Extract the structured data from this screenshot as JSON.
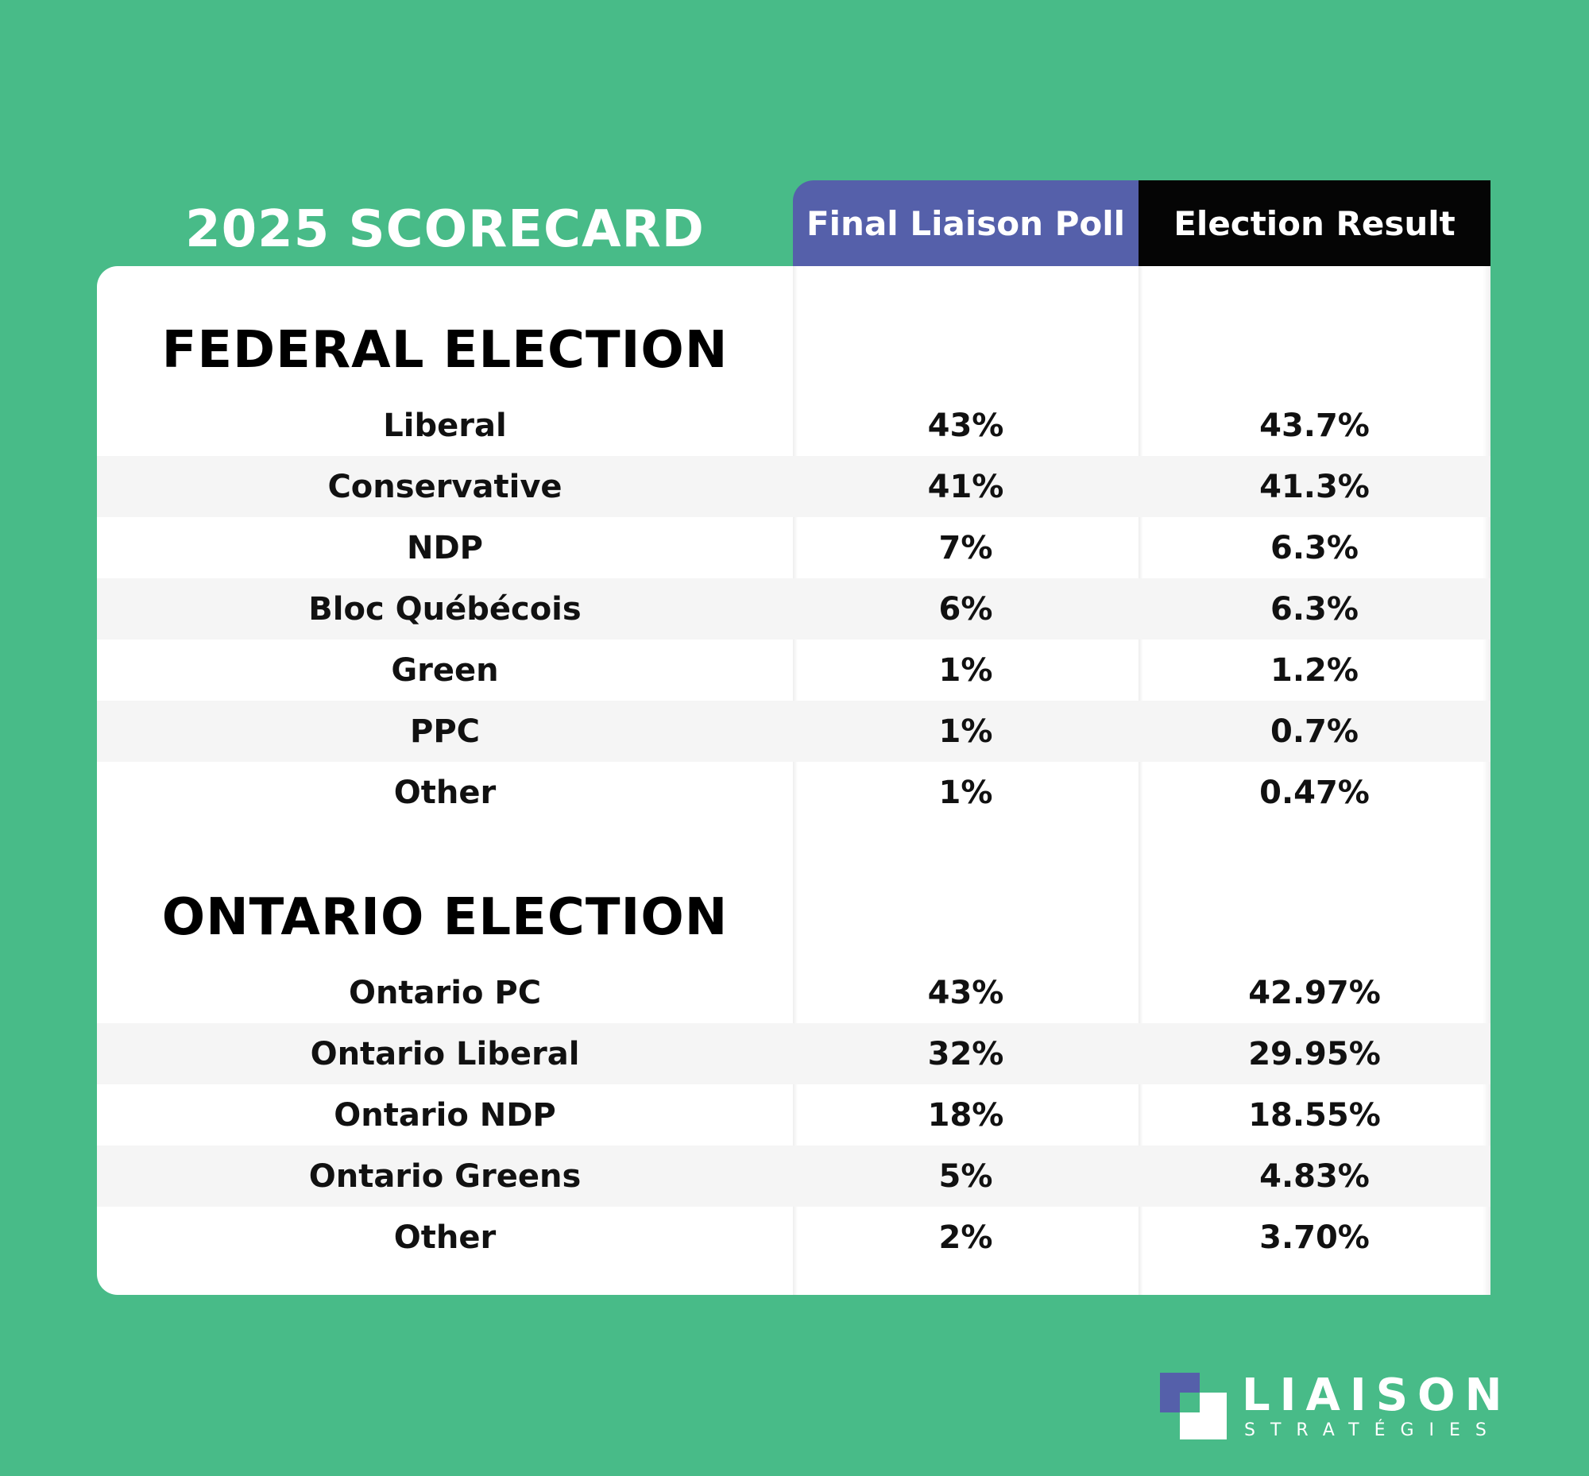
{
  "title": "2025 SCORECARD",
  "colors": {
    "background": "#48bb88",
    "poll_header": "#5560aa",
    "result_header": "#050505",
    "alt_row": "#f5f5f5"
  },
  "columns": {
    "poll": "Final Liaison Poll",
    "result": "Election Result"
  },
  "federal": {
    "heading": "FEDERAL ELECTION",
    "rows": [
      {
        "party": "Liberal",
        "poll": "43%",
        "result": "43.7%"
      },
      {
        "party": "Conservative",
        "poll": "41%",
        "result": "41.3%"
      },
      {
        "party": "NDP",
        "poll": "7%",
        "result": "6.3%"
      },
      {
        "party": "Bloc Québécois",
        "poll": "6%",
        "result": "6.3%"
      },
      {
        "party": "Green",
        "poll": "1%",
        "result": "1.2%"
      },
      {
        "party": "PPC",
        "poll": "1%",
        "result": "0.7%"
      },
      {
        "party": "Other",
        "poll": "1%",
        "result": "0.47%"
      }
    ]
  },
  "ontario": {
    "heading": "ONTARIO ELECTION",
    "rows": [
      {
        "party": "Ontario PC",
        "poll": "43%",
        "result": "42.97%"
      },
      {
        "party": "Ontario Liberal",
        "poll": "32%",
        "result": "29.95%"
      },
      {
        "party": "Ontario NDP",
        "poll": "18%",
        "result": "18.55%"
      },
      {
        "party": "Ontario Greens",
        "poll": "5%",
        "result": "4.83%"
      },
      {
        "party": "Other",
        "poll": "2%",
        "result": "3.70%"
      }
    ]
  },
  "logo": {
    "name": "LIAISON",
    "tagline": "STRATÉGIES"
  },
  "chart_data": {
    "type": "table",
    "title": "2025 SCORECARD",
    "columns": [
      "Final Liaison Poll",
      "Election Result"
    ],
    "sections": [
      {
        "name": "FEDERAL ELECTION",
        "rows": [
          {
            "party": "Liberal",
            "values": [
              43,
              43.7
            ]
          },
          {
            "party": "Conservative",
            "values": [
              41,
              41.3
            ]
          },
          {
            "party": "NDP",
            "values": [
              7,
              6.3
            ]
          },
          {
            "party": "Bloc Québécois",
            "values": [
              6,
              6.3
            ]
          },
          {
            "party": "Green",
            "values": [
              1,
              1.2
            ]
          },
          {
            "party": "PPC",
            "values": [
              1,
              0.7
            ]
          },
          {
            "party": "Other",
            "values": [
              1,
              0.47
            ]
          }
        ]
      },
      {
        "name": "ONTARIO ELECTION",
        "rows": [
          {
            "party": "Ontario PC",
            "values": [
              43,
              42.97
            ]
          },
          {
            "party": "Ontario Liberal",
            "values": [
              32,
              29.95
            ]
          },
          {
            "party": "Ontario NDP",
            "values": [
              18,
              18.55
            ]
          },
          {
            "party": "Ontario Greens",
            "values": [
              5,
              4.83
            ]
          },
          {
            "party": "Other",
            "values": [
              2,
              3.7
            ]
          }
        ]
      }
    ]
  }
}
